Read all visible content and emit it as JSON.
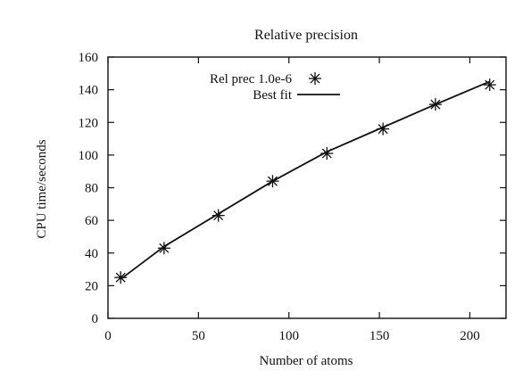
{
  "chart_data": {
    "type": "line",
    "title": "Relative precision",
    "xlabel": "Number of atoms",
    "ylabel": "CPU time/seconds",
    "xlim": [
      0,
      220
    ],
    "ylim": [
      0,
      160
    ],
    "x_ticks": [
      0,
      50,
      100,
      150,
      200
    ],
    "y_ticks": [
      0,
      20,
      40,
      60,
      80,
      100,
      120,
      140,
      160
    ],
    "grid": false,
    "legend": {
      "placement": "top-left"
    },
    "x": [
      7,
      31,
      61,
      91,
      121,
      152,
      181,
      211
    ],
    "series": [
      {
        "name": "Rel prec 1.0e-6",
        "style": "marker",
        "marker": "asterisk",
        "values": [
          25,
          43,
          63,
          84,
          101,
          116,
          131,
          143
        ]
      },
      {
        "name": "Best fit",
        "style": "line",
        "values": [
          24,
          44,
          64,
          84,
          102,
          117,
          131,
          145
        ]
      }
    ],
    "colors": {
      "ink": "#111111",
      "background": "#ffffff"
    }
  }
}
